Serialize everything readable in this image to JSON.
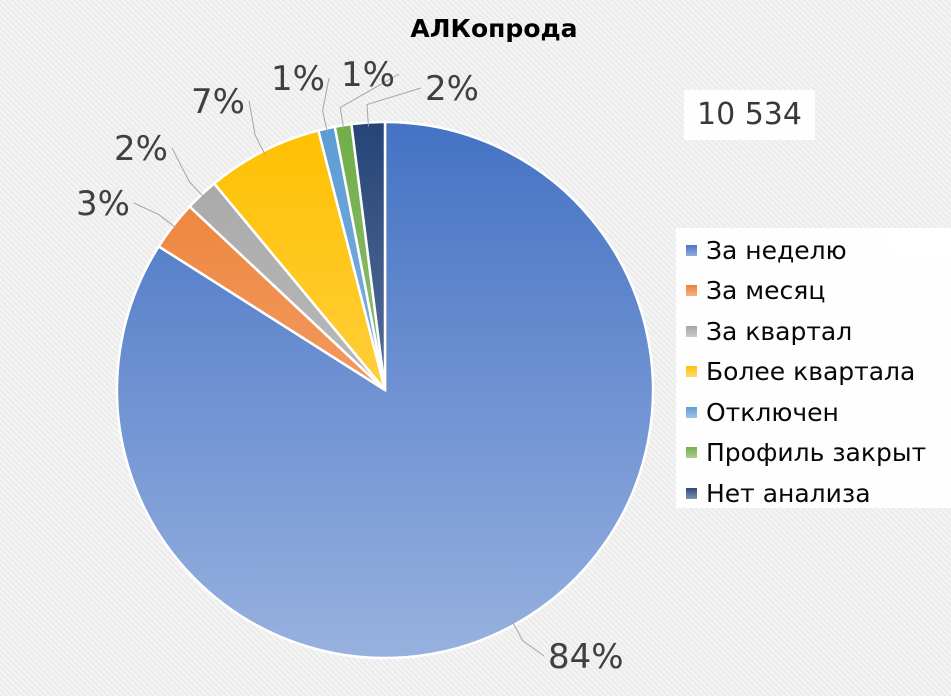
{
  "chart_data": {
    "type": "pie",
    "title": "АЛКопрода",
    "total_label": "10 534",
    "legend_position": "right",
    "categories": [
      "За неделю",
      "За месяц",
      "За квартал",
      "Более квартала",
      "Отключен",
      "Профиль закрыт",
      "Нет анализа"
    ],
    "values": [
      84,
      3,
      2,
      7,
      1,
      1,
      2
    ],
    "labels": [
      "84%",
      "3%",
      "2%",
      "7%",
      "1%",
      "1%",
      "2%"
    ],
    "colors": [
      "#4472c4",
      "#ed7d31",
      "#a5a5a5",
      "#ffc000",
      "#5b9bd5",
      "#70ad47",
      "#264478"
    ]
  }
}
